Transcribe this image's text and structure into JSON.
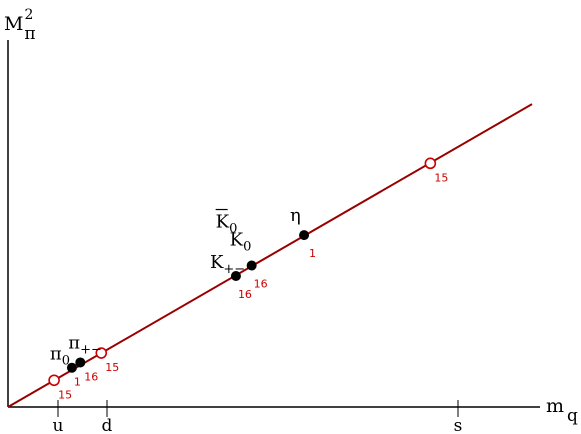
{
  "chart_data": {
    "type": "scatter",
    "title": "",
    "xlabel": {
      "main": "m",
      "sub": "q"
    },
    "ylabel": {
      "main": "M",
      "sub": "π",
      "sup": "2"
    },
    "x_ticks": [
      "u",
      "d",
      "s"
    ],
    "grid": false,
    "line": {
      "from": [
        0,
        0
      ],
      "to": [
        1.0,
        0.578
      ],
      "color": "#990000"
    },
    "filled_points": [
      {
        "name": "pi0",
        "x": 0.122,
        "y": 0.075,
        "label": "π",
        "label_sub": "0",
        "ann": "1"
      },
      {
        "name": "pi-plus-minus",
        "x": 0.138,
        "y": 0.085,
        "label": "π",
        "label_sub": "+−",
        "ann": "16"
      },
      {
        "name": "K-plus-minus",
        "x": 0.435,
        "y": 0.25,
        "label": "K",
        "label_sub": "+−",
        "ann": "16"
      },
      {
        "name": "K0",
        "x": 0.465,
        "y": 0.27,
        "label": "K",
        "label_sub": "0",
        "ann": "16"
      },
      {
        "name": "K0bar",
        "x": 0.465,
        "y": 0.27,
        "label": "K",
        "label_sub": "0",
        "label_bar": true
      },
      {
        "name": "eta",
        "x": 0.565,
        "y": 0.328,
        "label": "η",
        "ann": "1"
      }
    ],
    "open_points": [
      {
        "name": "open-low",
        "x": 0.088,
        "y": 0.051,
        "ann": "15"
      },
      {
        "name": "open-mid",
        "x": 0.178,
        "y": 0.103,
        "ann": "15"
      },
      {
        "name": "open-high",
        "x": 0.806,
        "y": 0.465,
        "ann": "15"
      }
    ],
    "colors": {
      "line": "#990000",
      "points": "#000000",
      "open_points": "#cc0000",
      "annotations": "#cc0000",
      "axes": "#000000"
    }
  }
}
